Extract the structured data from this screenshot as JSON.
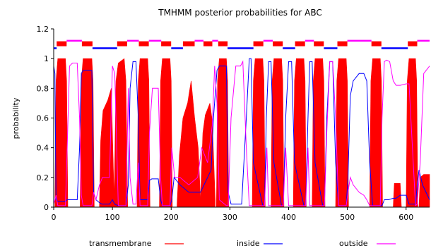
{
  "chart_data": {
    "type": "area",
    "title": "TMHMM posterior probabilities for ABC",
    "xlabel": "",
    "ylabel": "probability",
    "xlim": [
      0,
      640
    ],
    "ylim": [
      0,
      1.2
    ],
    "x_ticks": [
      "0",
      "100",
      "200",
      "300",
      "400",
      "500",
      "600"
    ],
    "y_ticks": [
      "0",
      "0.2",
      "0.4",
      "0.6",
      "0.8",
      "1",
      "1.2"
    ],
    "legend_position": "bottom",
    "grid": false,
    "series": [
      {
        "name": "transmembrane",
        "color": "#ff0000",
        "style": "filled-area",
        "segments": [
          {
            "x": [
              2,
              4,
              7,
              20,
              22,
              24
            ],
            "y": [
              0,
              0.85,
              1.0,
              1.0,
              0.85,
              0
            ]
          },
          {
            "x": [
              45,
              47,
              50,
              65,
              67,
              69
            ],
            "y": [
              0,
              0.85,
              1.0,
              1.0,
              0.85,
              0
            ]
          },
          {
            "x": [
              78,
              80,
              84,
              92,
              98,
              103
            ],
            "y": [
              0.02,
              0.45,
              0.65,
              0.72,
              0.8,
              0.05
            ]
          },
          {
            "x": [
              103,
              106,
              110,
              120,
              123,
              126
            ],
            "y": [
              0.05,
              0.85,
              0.97,
              1.0,
              0.85,
              0
            ]
          },
          {
            "x": [
              142,
              144,
              147,
              160,
              162,
              164
            ],
            "y": [
              0,
              0.85,
              1.0,
              1.0,
              0.85,
              0
            ]
          },
          {
            "x": [
              180,
              182,
              185,
              198,
              200,
              202
            ],
            "y": [
              0,
              0.85,
              1.0,
              1.0,
              0.85,
              0
            ]
          },
          {
            "x": [
              210,
              214,
              220,
              228,
              234,
              240,
              246,
              250
            ],
            "y": [
              0.02,
              0.35,
              0.6,
              0.7,
              0.85,
              0.6,
              0.4,
              0.05
            ]
          },
          {
            "x": [
              250,
              254,
              258,
              266,
              270,
              275
            ],
            "y": [
              0.05,
              0.5,
              0.62,
              0.7,
              0.58,
              0.05
            ]
          },
          {
            "x": [
              277,
              279,
              282,
              294,
              296,
              298
            ],
            "y": [
              0,
              0.85,
              1.0,
              1.0,
              0.85,
              0
            ]
          },
          {
            "x": [
              338,
              340,
              343,
              356,
              358,
              360
            ],
            "y": [
              0,
              0.85,
              1.0,
              1.0,
              0.85,
              0
            ]
          },
          {
            "x": [
              370,
              372,
              375,
              388,
              390,
              392
            ],
            "y": [
              0,
              0.85,
              1.0,
              1.0,
              0.85,
              0
            ]
          },
          {
            "x": [
              408,
              410,
              413,
              426,
              428,
              430
            ],
            "y": [
              0,
              0.85,
              1.0,
              1.0,
              0.85,
              0
            ]
          },
          {
            "x": [
              440,
              442,
              445,
              458,
              460,
              462
            ],
            "y": [
              0,
              0.85,
              1.0,
              1.0,
              0.85,
              0
            ]
          },
          {
            "x": [
              480,
              482,
              485,
              498,
              500,
              502
            ],
            "y": [
              0,
              0.85,
              1.0,
              1.0,
              0.85,
              0
            ]
          },
          {
            "x": [
              538,
              540,
              543,
              556,
              558,
              560
            ],
            "y": [
              0,
              0.85,
              1.0,
              1.0,
              0.85,
              0
            ]
          },
          {
            "x": [
              578,
              580,
              590,
              592
            ],
            "y": [
              0,
              0.16,
              0.16,
              0
            ]
          },
          {
            "x": [
              600,
              602,
              605,
              616,
              618,
              620
            ],
            "y": [
              0,
              0.85,
              1.0,
              1.0,
              0.85,
              0
            ]
          },
          {
            "x": [
              622,
              624,
              630,
              640
            ],
            "y": [
              0,
              0.2,
              0.22,
              0.22
            ]
          }
        ]
      },
      {
        "name": "inside",
        "color": "#0000ff",
        "style": "line",
        "x": [
          0,
          2,
          4,
          7,
          20,
          23,
          26,
          40,
          44,
          47,
          50,
          65,
          68,
          72,
          78,
          82,
          95,
          100,
          104,
          110,
          123,
          127,
          130,
          135,
          140,
          144,
          147,
          160,
          163,
          167,
          172,
          178,
          182,
          185,
          198,
          201,
          205,
          215,
          230,
          250,
          268,
          272,
          278,
          282,
          294,
          297,
          302,
          320,
          328,
          333,
          336,
          340,
          356,
          359,
          362,
          366,
          370,
          375,
          388,
          391,
          395,
          400,
          405,
          410,
          426,
          429,
          433,
          436,
          440,
          445,
          458,
          461,
          465,
          470,
          475,
          480,
          485,
          498,
          501,
          505,
          510,
          520,
          528,
          533,
          538,
          543,
          556,
          559,
          563,
          570,
          578,
          583,
          590,
          600,
          605,
          616,
          619,
          622,
          628,
          640
        ],
        "y": [
          0.95,
          0.9,
          0.05,
          0.04,
          0.04,
          0.05,
          0.05,
          0.05,
          0.4,
          0.9,
          0.92,
          0.92,
          0.1,
          0.05,
          0.03,
          0.02,
          0.02,
          0.05,
          0.02,
          0.01,
          0.01,
          0.15,
          0.8,
          0.98,
          0.98,
          0.6,
          0.05,
          0.05,
          0.18,
          0.19,
          0.19,
          0.19,
          0.05,
          0.01,
          0.01,
          0.05,
          0.2,
          0.15,
          0.1,
          0.1,
          0.25,
          0.6,
          0.92,
          0.95,
          0.95,
          0.1,
          0.02,
          0.02,
          0.6,
          1.0,
          1.0,
          0.3,
          0.01,
          0.01,
          0.6,
          0.98,
          0.98,
          0.3,
          0.01,
          0.01,
          0.6,
          0.98,
          0.98,
          0.3,
          0.01,
          0.01,
          0.6,
          0.98,
          0.98,
          0.3,
          0.01,
          0.01,
          0.6,
          0.98,
          0.98,
          0.3,
          0.01,
          0.01,
          0.2,
          0.75,
          0.85,
          0.9,
          0.9,
          0.85,
          0.3,
          0.01,
          0.01,
          0.01,
          0.05,
          0.05,
          0.06,
          0.06,
          0.08,
          0.08,
          0.02,
          0.02,
          0.15,
          0.25,
          0.15,
          0.05
        ]
      },
      {
        "name": "outside",
        "color": "#ff00ff",
        "style": "line",
        "x": [
          0,
          2,
          4,
          7,
          20,
          23,
          27,
          32,
          40,
          44,
          47,
          50,
          65,
          68,
          72,
          78,
          83,
          90,
          95,
          100,
          104,
          110,
          123,
          127,
          130,
          135,
          140,
          144,
          147,
          160,
          163,
          168,
          172,
          178,
          182,
          185,
          198,
          201,
          206,
          215,
          230,
          245,
          252,
          262,
          270,
          274,
          278,
          282,
          294,
          297,
          302,
          310,
          318,
          322,
          328,
          333,
          336,
          340,
          356,
          359,
          363,
          366,
          370,
          375,
          388,
          391,
          395,
          400,
          405,
          410,
          426,
          429,
          433,
          436,
          440,
          445,
          458,
          461,
          465,
          470,
          475,
          480,
          485,
          498,
          501,
          505,
          510,
          520,
          528,
          533,
          538,
          543,
          556,
          559,
          563,
          567,
          572,
          578,
          583,
          590,
          600,
          605,
          616,
          619,
          624,
          630,
          640
        ],
        "y": [
          0.02,
          0.05,
          0.08,
          0.01,
          0.01,
          0.4,
          0.95,
          0.97,
          0.97,
          0.6,
          0.08,
          0.01,
          0.01,
          0.1,
          0.05,
          0.15,
          0.2,
          0.2,
          0.2,
          0.95,
          0.9,
          0.01,
          0.01,
          0.8,
          0.2,
          0.02,
          0.02,
          0.3,
          0.01,
          0.01,
          0.5,
          0.8,
          0.8,
          0.8,
          0.2,
          0.01,
          0.01,
          0.4,
          0.2,
          0.2,
          0.15,
          0.2,
          0.4,
          0.3,
          0.55,
          0.95,
          0.7,
          0.05,
          0.01,
          0.01,
          0.6,
          0.95,
          0.95,
          0.98,
          0.4,
          0.01,
          0.01,
          0.01,
          0.01,
          0.01,
          0.4,
          0.01,
          0.01,
          0.01,
          0.01,
          0.01,
          0.4,
          0.01,
          0.01,
          0.01,
          0.01,
          0.01,
          0.4,
          0.01,
          0.01,
          0.01,
          0.01,
          0.01,
          0.5,
          0.98,
          0.98,
          0.6,
          0.01,
          0.01,
          0.1,
          0.2,
          0.15,
          0.1,
          0.08,
          0.05,
          0.01,
          0.01,
          0.01,
          0.6,
          0.98,
          0.99,
          0.98,
          0.85,
          0.82,
          0.82,
          0.83,
          0.83,
          0.01,
          0.02,
          0.3,
          0.9,
          0.95
        ]
      }
    ],
    "topology_bars": [
      {
        "kind": "transmembrane",
        "color": "#ff0000",
        "y": 1.1,
        "x0": [
          5,
          48,
          108,
          145,
          183,
          220,
          255,
          280,
          340,
          373,
          411,
          443,
          483,
          541,
          603
        ],
        "x1": [
          22,
          66,
          125,
          162,
          200,
          240,
          270,
          296,
          357,
          390,
          428,
          460,
          500,
          558,
          619
        ]
      },
      {
        "kind": "inside",
        "color": "#0000ff",
        "y": 1.07,
        "x0": [
          0,
          66,
          200,
          296,
          390,
          460,
          558
        ],
        "x1": [
          5,
          108,
          220,
          340,
          411,
          483,
          603
        ]
      },
      {
        "kind": "outside",
        "color": "#ff00ff",
        "y": 1.12,
        "x0": [
          22,
          125,
          162,
          240,
          270,
          357,
          428,
          500,
          619
        ],
        "x1": [
          48,
          145,
          183,
          255,
          280,
          373,
          443,
          541,
          640
        ]
      }
    ]
  }
}
